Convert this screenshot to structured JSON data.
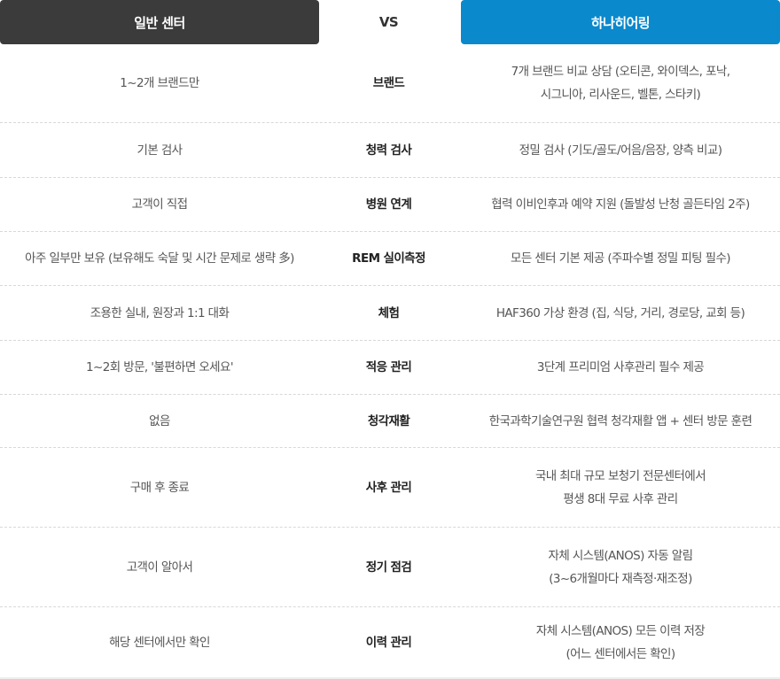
{
  "header": {
    "left": "일반 센터",
    "vs": "VS",
    "right": "하나히어링"
  },
  "colors": {
    "left_header": "#3b3b3b",
    "right_header": "#0a89cc",
    "middle_bg": "#f7f7f9"
  },
  "rows": [
    {
      "general": "1~2개 브랜드만",
      "category": "브랜드",
      "hana": "7개 브랜드 비교 상담 (오티콘, 와이덱스, 포낙,\n시그니아, 리사운드, 벨톤, 스타키)"
    },
    {
      "general": "기본 검사",
      "category": "청력 검사",
      "hana": "정밀 검사 (기도/골도/어음/음장, 양측 비교)"
    },
    {
      "general": "고객이 직접",
      "category": "병원 연계",
      "hana": "협력 이비인후과 예약 지원 (돌발성 난청 골든타임 2주)"
    },
    {
      "general": "아주 일부만 보유 (보유해도 숙달 및 시간 문제로 생략 多)",
      "category": "REM 실이측정",
      "hana": "모든 센터 기본 제공 (주파수별 정밀 피팅 필수)"
    },
    {
      "general": "조용한 실내, 원장과 1:1 대화",
      "category": "체험",
      "hana": "HAF360 가상 환경 (집, 식당, 거리, 경로당, 교회 등)"
    },
    {
      "general": "1~2회 방문, '불편하면 오세요'",
      "category": "적응 관리",
      "hana": "3단계 프리미엄 사후관리 필수 제공"
    },
    {
      "general": "없음",
      "category": "청각재활",
      "hana": "한국과학기술연구원 협력 청각재활 앱 + 센터 방문 훈련"
    },
    {
      "general": "구매 후 종료",
      "category": "사후 관리",
      "hana": "국내 최대 규모 보청기 전문센터에서\n평생 8대 무료 사후 관리"
    },
    {
      "general": "고객이 알아서",
      "category": "정기 점검",
      "hana": "자체 시스템(ANOS) 자동 알림\n(3~6개월마다 재측정·재조정)"
    },
    {
      "general": "해당 센터에서만 확인",
      "category": "이력 관리",
      "hana": "자체 시스템(ANOS) 모든 이력 저장\n(어느 센터에서든 확인)"
    }
  ]
}
